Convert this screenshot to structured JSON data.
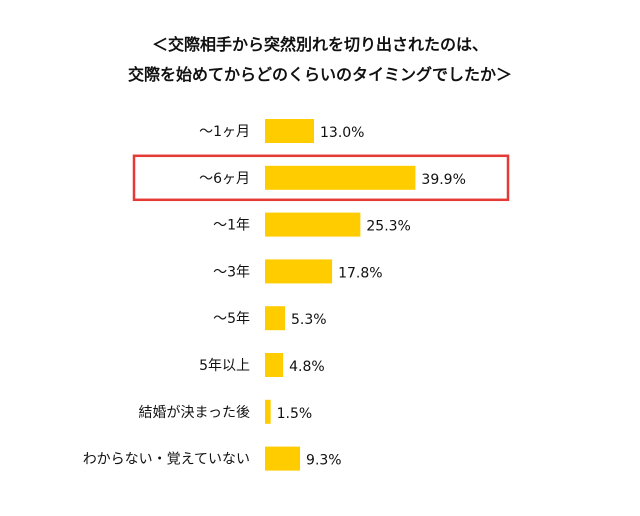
{
  "chart_data": {
    "type": "bar",
    "orientation": "horizontal",
    "title_lines": [
      "＜交際相手から突然別れを切り出されたのは、",
      "交際を始めてからどのくらいのタイミングでしたか＞"
    ],
    "categories": [
      "〜1ヶ月",
      "〜6ヶ月",
      "〜1年",
      "〜3年",
      "〜5年",
      "5年以上",
      "結婚が決まった後",
      "わからない・覚えていない"
    ],
    "values": [
      13.0,
      39.9,
      25.3,
      17.8,
      5.3,
      4.8,
      1.5,
      9.3
    ],
    "value_labels": [
      "13.0%",
      "39.9%",
      "25.3%",
      "17.8%",
      "5.3%",
      "4.8%",
      "1.5%",
      "9.3%"
    ],
    "unit": "%",
    "highlighted_category": "〜6ヶ月",
    "bar_color": "#FFCC00",
    "highlight_color": "#E53935",
    "grid": false,
    "legend": "none"
  }
}
